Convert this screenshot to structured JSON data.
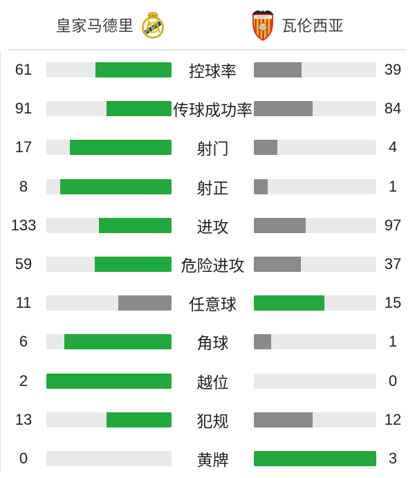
{
  "header": {
    "home": {
      "name": "皇家马德里",
      "crest_icon": "real-madrid-crest"
    },
    "away": {
      "name": "瓦伦西亚",
      "crest_icon": "valencia-crest"
    }
  },
  "colors": {
    "leader_bar": "#21a93d",
    "trailer_bar": "#8a8a8a",
    "track": "#e9e9e9",
    "divider": "#e3e3e3",
    "text": "#212121"
  },
  "stats": [
    {
      "label": "控球率",
      "home": 61,
      "away": 39
    },
    {
      "label": "传球成功率",
      "home": 91,
      "away": 84
    },
    {
      "label": "射门",
      "home": 17,
      "away": 4
    },
    {
      "label": "射正",
      "home": 8,
      "away": 1
    },
    {
      "label": "进攻",
      "home": 133,
      "away": 97
    },
    {
      "label": "危险进攻",
      "home": 59,
      "away": 37
    },
    {
      "label": "任意球",
      "home": 11,
      "away": 15
    },
    {
      "label": "角球",
      "home": 6,
      "away": 1
    },
    {
      "label": "越位",
      "home": 2,
      "away": 0
    },
    {
      "label": "犯规",
      "home": 13,
      "away": 12
    },
    {
      "label": "黄牌",
      "home": 0,
      "away": 3
    }
  ],
  "chart_data": {
    "type": "bar",
    "orientation": "horizontal-paired",
    "categories": [
      "控球率",
      "传球成功率",
      "射门",
      "射正",
      "进攻",
      "危险进攻",
      "任意球",
      "角球",
      "越位",
      "犯规",
      "黄牌"
    ],
    "series": [
      {
        "name": "皇家马德里",
        "values": [
          61,
          91,
          17,
          8,
          133,
          59,
          11,
          6,
          2,
          13,
          0
        ]
      },
      {
        "name": "瓦伦西亚",
        "values": [
          39,
          84,
          4,
          1,
          97,
          37,
          15,
          1,
          0,
          12,
          3
        ]
      }
    ],
    "value_labels_shown": true,
    "bar_fill_rule": "each bar filled proportionally to value/(home+away); larger value colored green, smaller gray",
    "legend_position": "top",
    "grid": false
  }
}
